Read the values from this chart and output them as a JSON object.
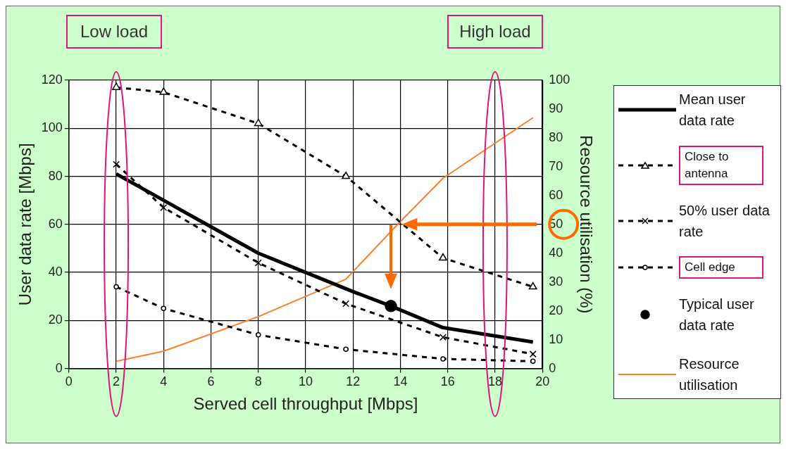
{
  "chart_data": {
    "type": "line",
    "xlabel": "Served cell throughput [Mbps]",
    "ylabel": "User data rate [Mbps]",
    "y2label": "Resource utilisation (%)",
    "annotations": [
      "Low load",
      "High load"
    ],
    "xlim": [
      0,
      20
    ],
    "xticks": [
      0,
      2,
      4,
      6,
      8,
      10,
      12,
      14,
      16,
      18,
      20
    ],
    "ylim": [
      0,
      120
    ],
    "yticks": [
      0,
      20,
      40,
      60,
      80,
      100,
      120
    ],
    "y2lim": [
      0,
      100
    ],
    "y2ticks": [
      0,
      10,
      20,
      30,
      40,
      50,
      60,
      70,
      80,
      90,
      100
    ],
    "grid": true,
    "legend": "right",
    "series": [
      {
        "name": "Mean user data rate",
        "type": "line",
        "color": "#000000",
        "line_style": "solid",
        "marker": "none",
        "x": [
          2,
          4,
          6,
          8,
          10,
          12,
          13.6,
          15.8,
          19.6
        ],
        "values": [
          81,
          70,
          59,
          48,
          40,
          32,
          26,
          17,
          11
        ]
      },
      {
        "name": "Close to antenna",
        "type": "line",
        "color": "#000000",
        "line_style": "dashed",
        "marker": "triangle",
        "x": [
          2,
          4,
          8,
          11.7,
          15.8,
          19.6
        ],
        "values": [
          117,
          115,
          102,
          80,
          46,
          34
        ]
      },
      {
        "name": "50% user data rate",
        "type": "line",
        "color": "#000000",
        "line_style": "dashed",
        "marker": "cross",
        "x": [
          2,
          4,
          8,
          11.7,
          15.8,
          19.6
        ],
        "values": [
          85,
          67,
          44,
          27,
          13,
          6
        ]
      },
      {
        "name": "Cell edge",
        "type": "line",
        "color": "#000000",
        "line_style": "dashed",
        "marker": "circle",
        "x": [
          2,
          4,
          8,
          11.7,
          15.8,
          19.6
        ],
        "values": [
          34,
          25,
          14,
          8,
          4,
          3
        ]
      },
      {
        "name": "Typical user data rate",
        "type": "scatter",
        "color": "#000000",
        "marker": "circle",
        "x": [
          13.6
        ],
        "values": [
          26
        ]
      },
      {
        "name": "Resource utilisation",
        "type": "line",
        "axis": "y2",
        "color": "#ff7f27",
        "line_style": "solid",
        "marker": "none",
        "x": [
          2,
          4,
          8,
          11.7,
          14,
          15.8,
          19.6
        ],
        "values": [
          2.5,
          6,
          18,
          31,
          51,
          66,
          87
        ]
      }
    ]
  }
}
